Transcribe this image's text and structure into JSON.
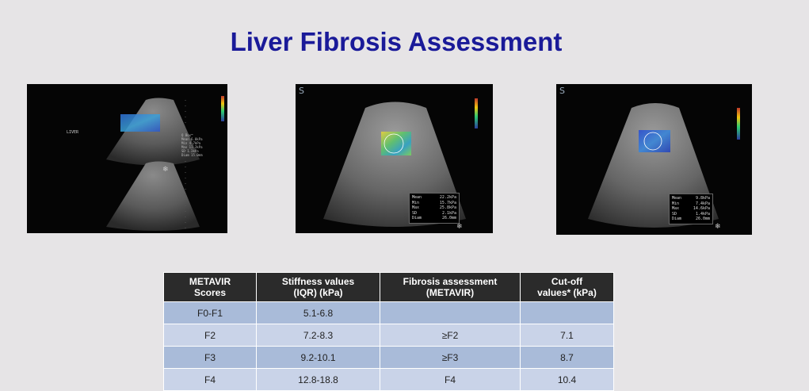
{
  "title": "Liver Fibrosis Assessment",
  "images": {
    "left": {
      "label": "LIVER",
      "side_text": [
        "Q Box™",
        "Mean 6.0kPa",
        "Min 4.7kPa",
        "Max 11.2kPa",
        "SD 1.3kPa",
        "Diam 15.0mm"
      ]
    },
    "middle": {
      "measurements": [
        {
          "label": "Mean",
          "value": "22.2kPa"
        },
        {
          "label": "Min",
          "value": "15.7kPa"
        },
        {
          "label": "Max",
          "value": "25.8kPa"
        },
        {
          "label": "SD",
          "value": "2.1kPa"
        },
        {
          "label": "Diam",
          "value": "26.0mm"
        }
      ]
    },
    "right": {
      "measurements": [
        {
          "label": "Mean",
          "value": "9.8kPa"
        },
        {
          "label": "Min",
          "value": "7.4kPa"
        },
        {
          "label": "Max",
          "value": "14.6kPa"
        },
        {
          "label": "SD",
          "value": "1.4kPa"
        },
        {
          "label": "Diam",
          "value": "26.0mm"
        }
      ]
    }
  },
  "table": {
    "headers": [
      [
        "METAVIR",
        "Scores"
      ],
      [
        "Stiffness values",
        "(IQR) (kPa)"
      ],
      [
        "Fibrosis assessment",
        "(METAVIR)"
      ],
      [
        "Cut-off",
        "values* (kPa)"
      ]
    ],
    "rows": [
      [
        "F0-F1",
        "5.1-6.8",
        "",
        ""
      ],
      [
        "F2",
        "7.2-8.3",
        "≥F2",
        "7.1"
      ],
      [
        "F3",
        "9.2-10.1",
        "≥F3",
        "8.7"
      ],
      [
        "F4",
        "12.8-18.8",
        "F4",
        "10.4"
      ]
    ]
  }
}
